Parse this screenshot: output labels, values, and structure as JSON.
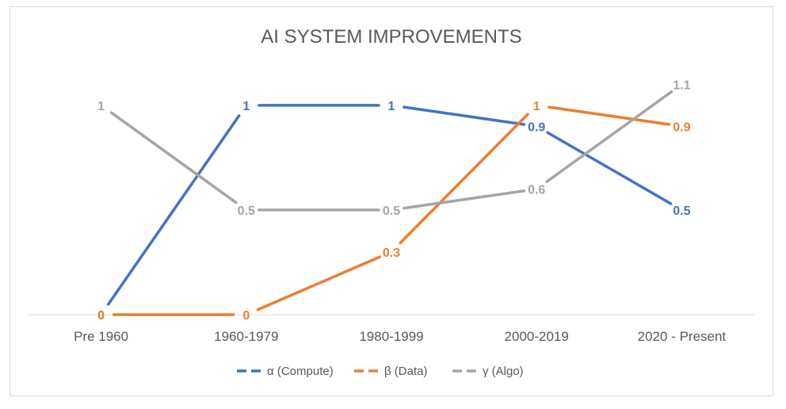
{
  "chart_data": {
    "type": "line",
    "title": "AI SYSTEM IMPROVEMENTS",
    "categories": [
      "Pre 1960",
      "1960-1979",
      "1980-1999",
      "2000-2019",
      "2020 - Present"
    ],
    "series": [
      {
        "name": "α (Compute)",
        "color": "#4472c4",
        "values": [
          0,
          1,
          1,
          0.9,
          0.5
        ]
      },
      {
        "name": "β (Data)",
        "color": "#ed7d31",
        "values": [
          0,
          0,
          0.3,
          1,
          0.9
        ]
      },
      {
        "name": "γ (Algo)",
        "color": "#a5a5a5",
        "values": [
          1,
          0.5,
          0.5,
          0.6,
          1.1
        ]
      }
    ],
    "ylim": [
      0,
      1.2
    ],
    "legend": "bottom",
    "grid": false
  }
}
